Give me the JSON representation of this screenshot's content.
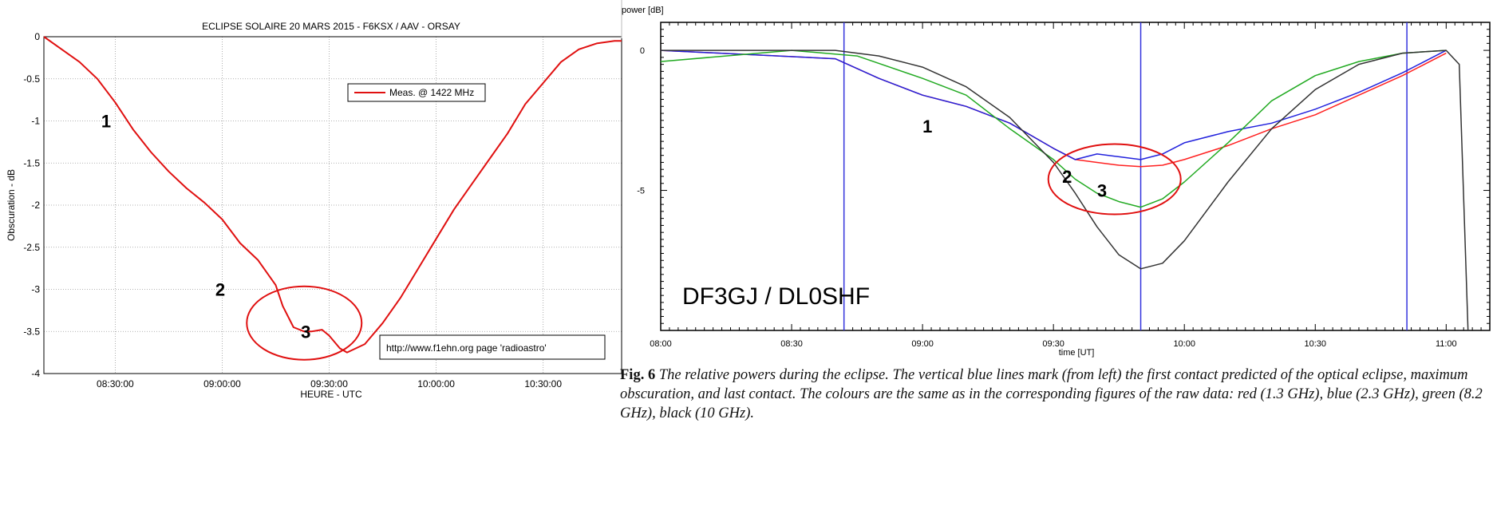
{
  "chart_data": [
    {
      "type": "line",
      "title": "ECLIPSE SOLAIRE 20 MARS 2015 - F6KSX / AAV - ORSAY",
      "xlabel": "HEURE - UTC",
      "ylabel": "Obscuration - dB",
      "xlim": [
        "08:10:00",
        "10:52:00"
      ],
      "ylim": [
        -4,
        0
      ],
      "xticks": [
        "08:30:00",
        "09:00:00",
        "09:30:00",
        "10:00:00",
        "10:30:00"
      ],
      "yticks": [
        "0",
        "-0.5",
        "-1",
        "-1.5",
        "-2",
        "-2.5",
        "-3",
        "-3.5",
        "-4"
      ],
      "grid": true,
      "legend": {
        "position": "top-right",
        "entries": [
          "Meas. @ 1422 MHz"
        ]
      },
      "annotation_box": "http://www.f1ehn.org  page 'radioastro'",
      "markers": [
        {
          "label": "1",
          "x": "08:31",
          "y": -1.0
        },
        {
          "label": "2",
          "x": "09:03",
          "y": -3.0
        },
        {
          "label": "3",
          "x": "09:27",
          "y": -3.5
        }
      ],
      "highlight_ellipse": {
        "x_center": "09:23",
        "y_center": -3.4
      },
      "series": [
        {
          "name": "Meas. @ 1422 MHz",
          "color": "#e01010",
          "x": [
            "08:10",
            "08:15",
            "08:20",
            "08:25",
            "08:30",
            "08:35",
            "08:40",
            "08:45",
            "08:50",
            "08:55",
            "09:00",
            "09:05",
            "09:10",
            "09:15",
            "09:17",
            "09:20",
            "09:23",
            "09:25",
            "09:28",
            "09:30",
            "09:33",
            "09:35",
            "09:40",
            "09:45",
            "09:50",
            "09:55",
            "10:00",
            "10:05",
            "10:10",
            "10:15",
            "10:20",
            "10:25",
            "10:30",
            "10:35",
            "10:40",
            "10:45",
            "10:50",
            "10:52"
          ],
          "values": [
            0,
            -0.15,
            -0.3,
            -0.5,
            -0.78,
            -1.1,
            -1.37,
            -1.6,
            -1.8,
            -1.97,
            -2.17,
            -2.45,
            -2.65,
            -2.95,
            -3.2,
            -3.45,
            -3.5,
            -3.5,
            -3.48,
            -3.55,
            -3.7,
            -3.75,
            -3.65,
            -3.4,
            -3.1,
            -2.75,
            -2.4,
            -2.05,
            -1.75,
            -1.45,
            -1.15,
            -0.8,
            -0.55,
            -0.3,
            -0.15,
            -0.08,
            -0.05,
            -0.05
          ]
        }
      ]
    },
    {
      "type": "line",
      "title": "",
      "xlabel": "time [UT]",
      "ylabel": "power [dB]",
      "xlim": [
        "08:00",
        "11:10"
      ],
      "ylim": [
        -10,
        1
      ],
      "xticks": [
        "08:00",
        "08:30",
        "09:00",
        "09:30",
        "10:00",
        "10:30",
        "11:00"
      ],
      "yticks": [
        "0",
        "-5"
      ],
      "grid": false,
      "watermark": "DF3GJ / DL0SHF",
      "vertical_lines": {
        "color": "#3333dd",
        "x": [
          "08:42",
          "09:50",
          "10:51"
        ]
      },
      "markers": [
        {
          "label": "1",
          "x": "09:00",
          "y": -2.7
        },
        {
          "label": "2",
          "x": "09:32",
          "y": -4.5
        },
        {
          "label": "3",
          "x": "09:40",
          "y": -5.0
        }
      ],
      "highlight_ellipse": {
        "x_center": "09:44",
        "y_center": -4.6
      },
      "series": [
        {
          "color": "#ff2020",
          "x": [
            "08:00",
            "08:40",
            "08:50",
            "09:00",
            "09:10",
            "09:20",
            "09:30",
            "09:35",
            "09:40",
            "09:45",
            "09:50",
            "09:55",
            "10:00",
            "10:10",
            "10:20",
            "10:30",
            "10:40",
            "10:50",
            "11:00"
          ],
          "values": [
            0,
            -0.3,
            -1.0,
            -1.6,
            -2.0,
            -2.6,
            -3.5,
            -3.9,
            -4.0,
            -4.1,
            -4.15,
            -4.1,
            -3.9,
            -3.4,
            -2.8,
            -2.3,
            -1.6,
            -0.9,
            -0.1
          ]
        },
        {
          "color": "#2222dd",
          "x": [
            "08:00",
            "08:40",
            "08:50",
            "09:00",
            "09:10",
            "09:20",
            "09:30",
            "09:35",
            "09:40",
            "09:45",
            "09:50",
            "09:55",
            "10:00",
            "10:10",
            "10:20",
            "10:30",
            "10:40",
            "10:50",
            "11:00"
          ],
          "values": [
            0,
            -0.3,
            -1.0,
            -1.6,
            -2.0,
            -2.6,
            -3.5,
            -3.9,
            -3.7,
            -3.8,
            -3.9,
            -3.7,
            -3.3,
            -2.9,
            -2.6,
            -2.1,
            -1.5,
            -0.8,
            0
          ]
        },
        {
          "color": "#22aa22",
          "x": [
            "08:00",
            "08:30",
            "08:45",
            "09:00",
            "09:10",
            "09:20",
            "09:30",
            "09:35",
            "09:40",
            "09:45",
            "09:50",
            "09:55",
            "10:00",
            "10:10",
            "10:20",
            "10:30",
            "10:40",
            "10:50",
            "11:00"
          ],
          "values": [
            -0.4,
            0,
            -0.2,
            -1.0,
            -1.6,
            -2.8,
            -3.9,
            -4.6,
            -5.1,
            -5.4,
            -5.6,
            -5.3,
            -4.7,
            -3.3,
            -1.8,
            -0.9,
            -0.4,
            -0.1,
            0
          ]
        },
        {
          "color": "#333333",
          "x": [
            "08:00",
            "08:40",
            "08:50",
            "09:00",
            "09:10",
            "09:20",
            "09:30",
            "09:35",
            "09:40",
            "09:45",
            "09:50",
            "09:55",
            "10:00",
            "10:10",
            "10:20",
            "10:30",
            "10:40",
            "10:50",
            "11:00",
            "11:03",
            "11:05"
          ],
          "values": [
            0,
            0,
            -0.2,
            -0.6,
            -1.3,
            -2.4,
            -4.0,
            -5.1,
            -6.3,
            -7.3,
            -7.8,
            -7.6,
            -6.8,
            -4.7,
            -2.8,
            -1.4,
            -0.5,
            -0.1,
            0,
            -0.5,
            -10
          ]
        }
      ]
    }
  ],
  "caption": {
    "fig_label": "Fig. 6",
    "text": " The relative powers during the eclipse. The vertical blue lines mark (from left) the first contact predicted of the optical eclipse, maximum obscuration, and last contact. The colours are the same as in the corresponding figures of the raw data: red (1.3 GHz), blue (2.3 GHz), green (8.2 GHz), black (10 GHz)."
  }
}
